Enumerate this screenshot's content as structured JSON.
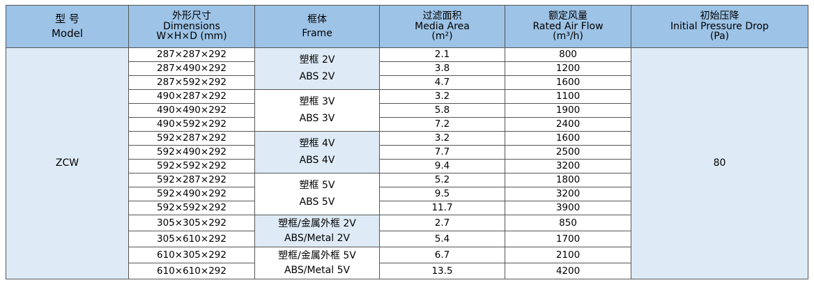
{
  "headers": {
    "model": {
      "zh": "型 号",
      "en": "Model"
    },
    "dimensions": {
      "zh": "外形尺寸",
      "en": "Dimensions",
      "sub": "W×H×D (mm)"
    },
    "frame": {
      "zh": "框体",
      "en": "Frame"
    },
    "media_area": {
      "zh": "过滤面积",
      "en": "Media Area",
      "unit": "(m²)"
    },
    "air_flow": {
      "zh": "额定风量",
      "en": "Rated Air Flow",
      "unit": "(m³/h)"
    },
    "pressure": {
      "zh": "初始压降",
      "en": "Initial Pressure Drop",
      "unit": "(Pa)"
    }
  },
  "model": "ZCW",
  "initial_pressure_drop": "80",
  "frames": [
    {
      "line1": "塑框  2V",
      "line2": "ABS  2V"
    },
    {
      "line1": "塑框  3V",
      "line2": "ABS  3V"
    },
    {
      "line1": "塑框  4V",
      "line2": "ABS  4V"
    },
    {
      "line1": "塑框  5V",
      "line2": "ABS  5V"
    },
    {
      "line1": "塑框/金属外框  2V",
      "line2": "ABS/Metal  2V"
    },
    {
      "line1": "塑框/金属外框  5V",
      "line2": "ABS/Metal  5V"
    }
  ],
  "rows": [
    {
      "dim": "287×287×292",
      "area": "2.1",
      "flow": "800"
    },
    {
      "dim": "287×490×292",
      "area": "3.8",
      "flow": "1200"
    },
    {
      "dim": "287×592×292",
      "area": "4.7",
      "flow": "1600"
    },
    {
      "dim": "490×287×292",
      "area": "3.2",
      "flow": "1100"
    },
    {
      "dim": "490×490×292",
      "area": "5.8",
      "flow": "1900"
    },
    {
      "dim": "490×592×292",
      "area": "7.2",
      "flow": "2400"
    },
    {
      "dim": "592×287×292",
      "area": "3.2",
      "flow": "1600"
    },
    {
      "dim": "592×490×292",
      "area": "7.7",
      "flow": "2500"
    },
    {
      "dim": "592×592×292",
      "area": "9.4",
      "flow": "3200"
    },
    {
      "dim": "592×287×292",
      "area": "5.2",
      "flow": "1800"
    },
    {
      "dim": "592×490×292",
      "area": "9.5",
      "flow": "3200"
    },
    {
      "dim": "592×592×292",
      "area": "11.7",
      "flow": "3900"
    },
    {
      "dim": "305×305×292",
      "area": "2.7",
      "flow": "850"
    },
    {
      "dim": "305×610×292",
      "area": "5.4",
      "flow": "1700"
    },
    {
      "dim": "610×305×292",
      "area": "6.7",
      "flow": "2100"
    },
    {
      "dim": "610×610×292",
      "area": "13.5",
      "flow": "4200"
    }
  ],
  "colors": {
    "header_bg": "#9dc3e6",
    "shade_bg": "#deebf7",
    "border": "#555555"
  }
}
